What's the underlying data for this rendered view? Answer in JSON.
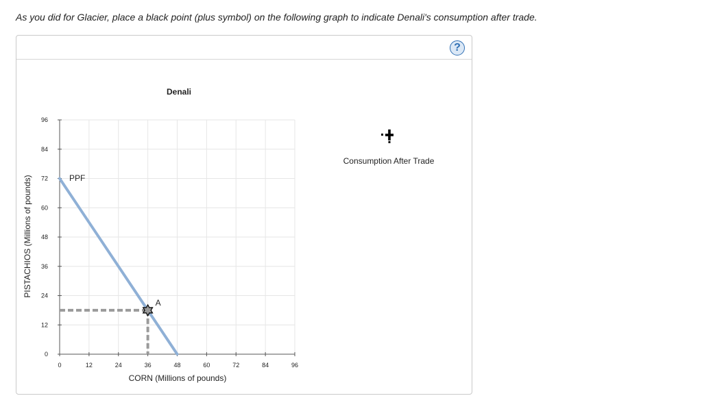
{
  "instruction": "As you did for Glacier, place a black point (plus symbol) on the following graph to indicate Denali's consumption after trade.",
  "help_button": {
    "label": "?"
  },
  "chart_data": {
    "type": "line",
    "title": "Denali",
    "xlabel": "CORN (Millions of pounds)",
    "ylabel": "PISTACHIOS (Millions of pounds)",
    "xlim": [
      0,
      96
    ],
    "ylim": [
      0,
      96
    ],
    "xticks": [
      0,
      12,
      24,
      36,
      48,
      60,
      72,
      84,
      96
    ],
    "yticks": [
      0,
      12,
      24,
      36,
      48,
      60,
      72,
      84,
      96
    ],
    "grid": true,
    "series": [
      {
        "name": "PPF",
        "x": [
          0,
          48
        ],
        "y": [
          72,
          0
        ],
        "color": "#8fb0d6"
      }
    ],
    "points": [
      {
        "label": "A",
        "x": 36,
        "y": 18
      }
    ],
    "legend": {
      "position": "right",
      "items": [
        {
          "label": "Consumption After Trade",
          "symbol": "plus",
          "color": "#000000"
        }
      ]
    }
  }
}
